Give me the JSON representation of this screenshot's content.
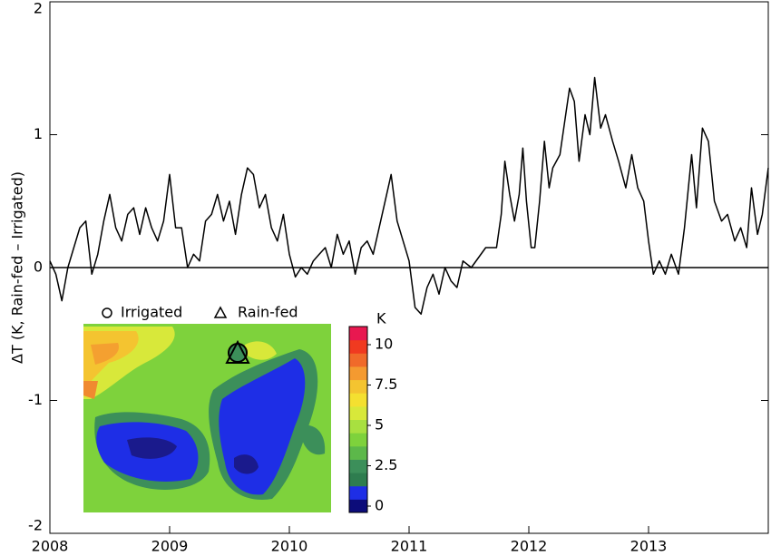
{
  "chart_data": {
    "type": "line",
    "y_label": "ΔT (K, Rain-fed  – Irrigated)",
    "xlim": [
      2008,
      2014
    ],
    "xticks": [
      2008,
      2009,
      2010,
      2011,
      2012,
      2013
    ],
    "ylim": [
      -2,
      2
    ],
    "yticks": [
      -2,
      -1,
      0,
      1,
      2
    ],
    "zero_line": true,
    "series": [
      {
        "color": "#000000",
        "x": [
          2008.0,
          2008.05,
          2008.1,
          2008.15,
          2008.2,
          2008.25,
          2008.3,
          2008.35,
          2008.4,
          2008.45,
          2008.5,
          2008.55,
          2008.6,
          2008.65,
          2008.7,
          2008.75,
          2008.8,
          2008.85,
          2008.9,
          2008.95,
          2009.0,
          2009.05,
          2009.1,
          2009.15,
          2009.2,
          2009.25,
          2009.3,
          2009.35,
          2009.4,
          2009.45,
          2009.5,
          2009.55,
          2009.6,
          2009.65,
          2009.7,
          2009.75,
          2009.8,
          2009.85,
          2009.9,
          2009.95,
          2010.0,
          2010.05,
          2010.1,
          2010.15,
          2010.2,
          2010.25,
          2010.3,
          2010.35,
          2010.4,
          2010.45,
          2010.5,
          2010.55,
          2010.6,
          2010.65,
          2010.7,
          2010.75,
          2010.8,
          2010.85,
          2010.9,
          2010.95,
          2011.0,
          2011.05,
          2011.1,
          2011.15,
          2011.2,
          2011.25,
          2011.3,
          2011.35,
          2011.4,
          2011.45,
          2011.52,
          2011.64,
          2011.73,
          2011.77,
          2011.8,
          2011.84,
          2011.88,
          2011.92,
          2011.95,
          2011.98,
          2012.02,
          2012.05,
          2012.09,
          2012.13,
          2012.17,
          2012.2,
          2012.26,
          2012.3,
          2012.34,
          2012.38,
          2012.42,
          2012.47,
          2012.51,
          2012.55,
          2012.6,
          2012.64,
          2012.7,
          2012.75,
          2012.81,
          2012.86,
          2012.91,
          2012.96,
          2013.0,
          2013.04,
          2013.09,
          2013.14,
          2013.19,
          2013.25,
          2013.3,
          2013.36,
          2013.4,
          2013.45,
          2013.5,
          2013.55,
          2013.61,
          2013.66,
          2013.72,
          2013.77,
          2013.82,
          2013.86,
          2013.91,
          2013.95,
          2014.0
        ],
        "values": [
          0.05,
          -0.05,
          -0.25,
          0.0,
          0.15,
          0.3,
          0.35,
          -0.05,
          0.1,
          0.35,
          0.55,
          0.3,
          0.2,
          0.4,
          0.45,
          0.25,
          0.45,
          0.3,
          0.2,
          0.35,
          0.7,
          0.3,
          0.3,
          0.0,
          0.1,
          0.05,
          0.35,
          0.4,
          0.55,
          0.35,
          0.5,
          0.25,
          0.55,
          0.75,
          0.7,
          0.45,
          0.55,
          0.3,
          0.2,
          0.4,
          0.1,
          -0.07,
          0.0,
          -0.05,
          0.05,
          0.1,
          0.15,
          0.0,
          0.25,
          0.1,
          0.2,
          -0.05,
          0.15,
          0.2,
          0.1,
          0.3,
          0.5,
          0.7,
          0.35,
          0.2,
          0.05,
          -0.3,
          -0.35,
          -0.15,
          -0.05,
          -0.2,
          0.0,
          -0.1,
          -0.15,
          0.05,
          0.0,
          0.15,
          0.15,
          0.4,
          0.8,
          0.55,
          0.35,
          0.55,
          0.9,
          0.5,
          0.15,
          0.15,
          0.5,
          0.95,
          0.6,
          0.75,
          0.85,
          1.1,
          1.35,
          1.25,
          0.8,
          1.15,
          1.0,
          1.43,
          1.05,
          1.15,
          0.95,
          0.8,
          0.6,
          0.85,
          0.6,
          0.5,
          0.2,
          -0.05,
          0.05,
          -0.05,
          0.1,
          -0.05,
          0.3,
          0.85,
          0.45,
          1.05,
          0.95,
          0.5,
          0.35,
          0.4,
          0.2,
          0.3,
          0.15,
          0.6,
          0.25,
          0.4,
          0.75
        ]
      }
    ],
    "inset": {
      "legend": [
        "Irrigated",
        "Rain-fed"
      ],
      "colorbar_label": "K",
      "colorbar_ticks": [
        0,
        2.5,
        5,
        7.5,
        10
      ]
    }
  }
}
